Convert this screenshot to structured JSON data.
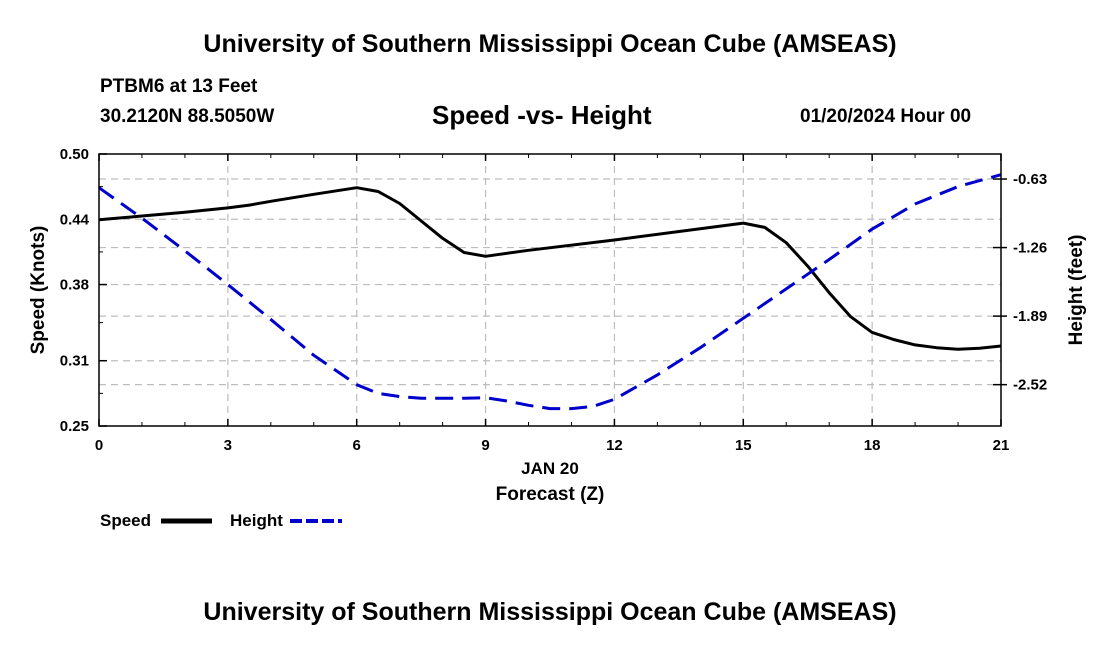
{
  "header": {
    "title": "University of Southern Mississippi Ocean Cube (AMSEAS)",
    "station": "PTBM6 at 13 Feet",
    "coords": "30.2120N  88.5050W",
    "subtitle": "Speed -vs- Height",
    "datetime": "01/20/2024 Hour 00"
  },
  "footer": {
    "title": "University of Southern Mississippi Ocean Cube (AMSEAS)"
  },
  "chart_data": {
    "type": "line",
    "title": "Speed -vs- Height",
    "xlabel": "Forecast (Z)",
    "xlabel_date": "JAN 20",
    "ylabel_left": "Speed (Knots)",
    "ylabel_right": "Height (feet)",
    "xlim": [
      0,
      21
    ],
    "ylim_left": [
      0.25,
      0.5
    ],
    "ylim_right": [
      -2.9,
      -0.4
    ],
    "x_ticks": [
      0,
      3,
      6,
      9,
      12,
      15,
      18,
      21
    ],
    "x_tick_labels": [
      "0",
      "3",
      "6",
      "9",
      "12",
      "15",
      "18",
      "21"
    ],
    "y_left_ticks": [
      0.25,
      0.31,
      0.38,
      0.44,
      0.5
    ],
    "y_left_tick_labels": [
      "0.25",
      "0.31",
      "0.38",
      "0.44",
      "0.50"
    ],
    "y_right_ticks": [
      -0.63,
      -1.26,
      -1.89,
      -2.52
    ],
    "y_right_tick_labels": [
      "-0.63",
      "-1.26",
      "-1.89",
      "-2.52"
    ],
    "grid": true,
    "legend": [
      {
        "label": "Speed",
        "color": "#000000",
        "style": "solid"
      },
      {
        "label": "Height",
        "color": "#0000cc",
        "style": "dashed"
      }
    ],
    "series": [
      {
        "name": "Speed",
        "axis": "left",
        "color": "#000000",
        "x": [
          0,
          1,
          2,
          3,
          3.5,
          4,
          5,
          6,
          6.5,
          7,
          8,
          8.5,
          9,
          10,
          12,
          15,
          15.5,
          16,
          16.5,
          17,
          17.5,
          18,
          18.5,
          19,
          19.5,
          20,
          20.5,
          21
        ],
        "values": [
          0.4395,
          0.443,
          0.4465,
          0.4505,
          0.453,
          0.4565,
          0.463,
          0.469,
          0.4655,
          0.4545,
          0.4225,
          0.4095,
          0.406,
          0.4115,
          0.421,
          0.4365,
          0.4325,
          0.4185,
          0.397,
          0.3725,
          0.3505,
          0.336,
          0.3295,
          0.3245,
          0.322,
          0.3205,
          0.3215,
          0.3235
        ]
      },
      {
        "name": "Height",
        "axis": "right",
        "color": "#0000cc",
        "x": [
          0,
          1,
          2,
          3,
          4,
          5,
          6,
          6.5,
          7,
          7.5,
          8,
          8.5,
          9,
          9.5,
          10,
          10.5,
          11,
          11.5,
          12,
          13,
          14,
          15,
          16,
          17,
          18,
          19,
          20,
          21
        ],
        "values": [
          -0.71,
          -0.99,
          -1.29,
          -1.6,
          -1.92,
          -2.25,
          -2.52,
          -2.6,
          -2.63,
          -2.645,
          -2.645,
          -2.645,
          -2.64,
          -2.67,
          -2.71,
          -2.74,
          -2.74,
          -2.72,
          -2.655,
          -2.43,
          -2.18,
          -1.91,
          -1.64,
          -1.37,
          -1.09,
          -0.86,
          -0.7,
          -0.59
        ]
      }
    ]
  }
}
